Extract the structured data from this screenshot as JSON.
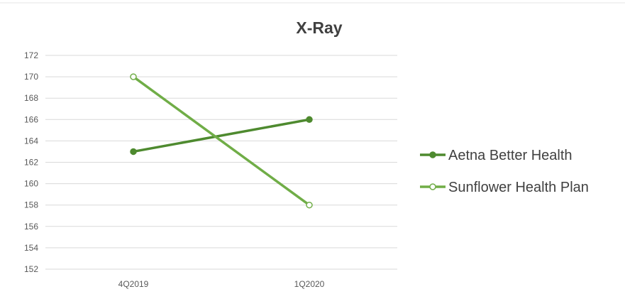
{
  "chart_data": {
    "type": "line",
    "title": "X-Ray",
    "categories": [
      "4Q2019",
      "1Q2020"
    ],
    "series": [
      {
        "name": "Aetna Better Health",
        "values": [
          163,
          166
        ],
        "color": "#4e8a2f",
        "marker": "filled"
      },
      {
        "name": "Sunflower Health Plan",
        "values": [
          170,
          158
        ],
        "color": "#70ad47",
        "marker": "hollow"
      }
    ],
    "ylim": [
      152,
      172
    ],
    "yticks": [
      152,
      154,
      156,
      158,
      160,
      162,
      164,
      166,
      168,
      170,
      172
    ],
    "grid": true,
    "legend": "right",
    "colors": {
      "grid": "#d9d9d9",
      "tick_text": "#595959",
      "title": "#404040",
      "legend_text": "#404040"
    }
  }
}
